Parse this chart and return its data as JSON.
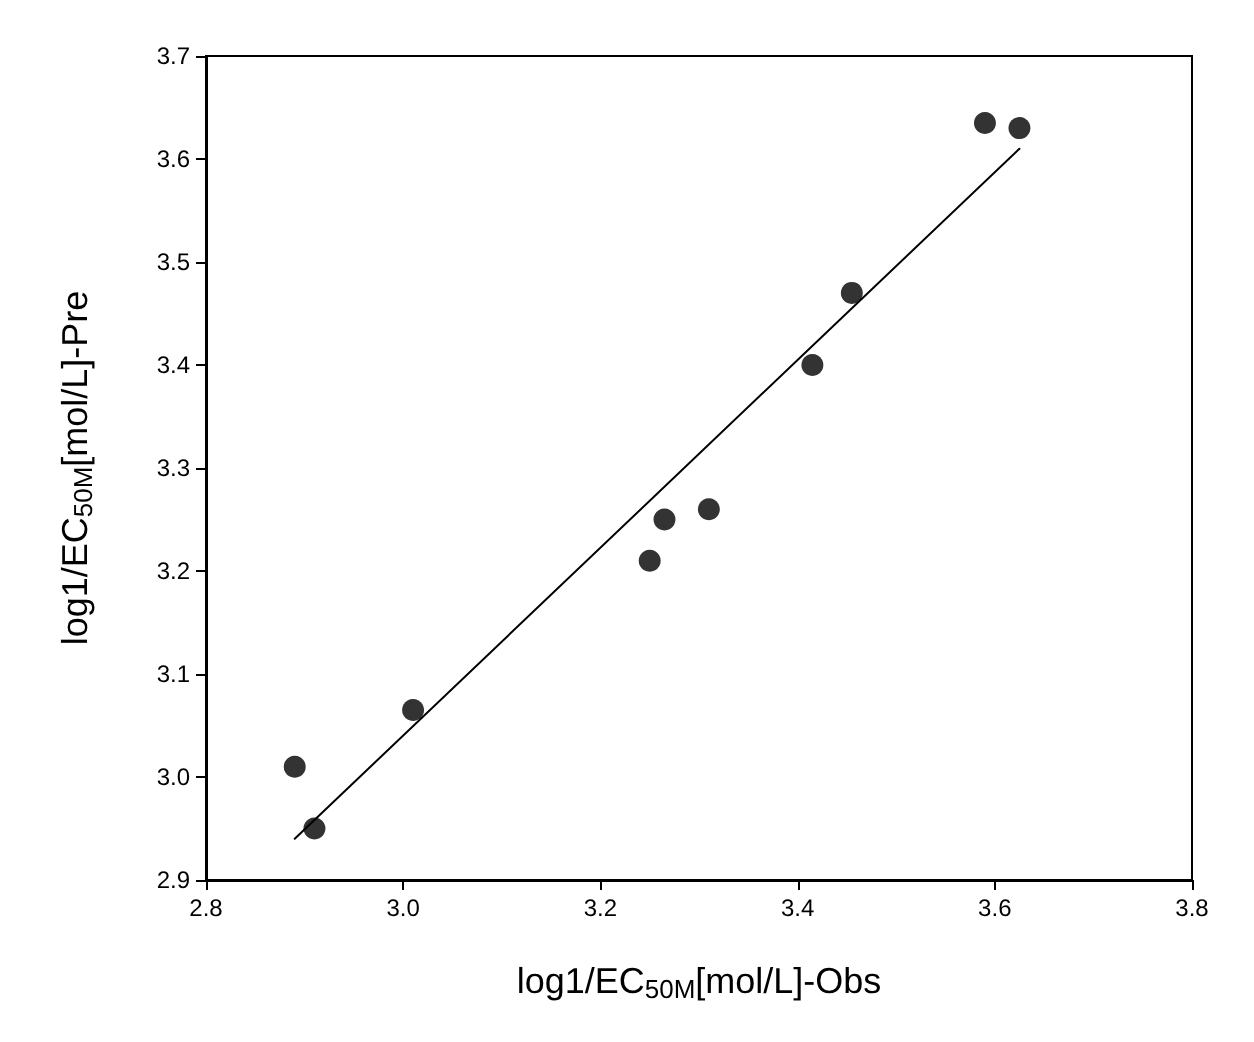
{
  "chart_data": {
    "type": "scatter",
    "xlabel": "log1/EC$_{50M}$[mol/L]-Obs",
    "ylabel": "log1/EC$_{50M}$[mol/L]-Pre",
    "marker": "circle",
    "grid": false,
    "xlim": [
      2.8,
      3.8
    ],
    "xticks": [
      2.8,
      {
        "value": 3,
        "label": "3.0"
      },
      3.2,
      3.4,
      3.6,
      3.8
    ],
    "ylim": [
      2.9,
      3.7
    ],
    "yticks": [
      2.9,
      {
        "value": 3,
        "label": "3.0"
      },
      3.1,
      3.2,
      3.3,
      3.4,
      3.5,
      3.6,
      3.7
    ],
    "series": [
      {
        "color": "#000000",
        "x": [
          2.89,
          2.91,
          3.01,
          3.25,
          3.265,
          3.31,
          3.415,
          3.455,
          3.59,
          3.625
        ],
        "values": [
          3.01,
          2.95,
          3.065,
          3.21,
          3.25,
          3.26,
          3.4,
          3.47,
          3.635,
          3.63
        ]
      },
      {
        "type": "line",
        "color": "#000000",
        "marker": "none",
        "line_style": "solid",
        "x": [
          2.89,
          3.625
        ],
        "values": [
          2.94,
          3.61
        ]
      }
    ]
  }
}
